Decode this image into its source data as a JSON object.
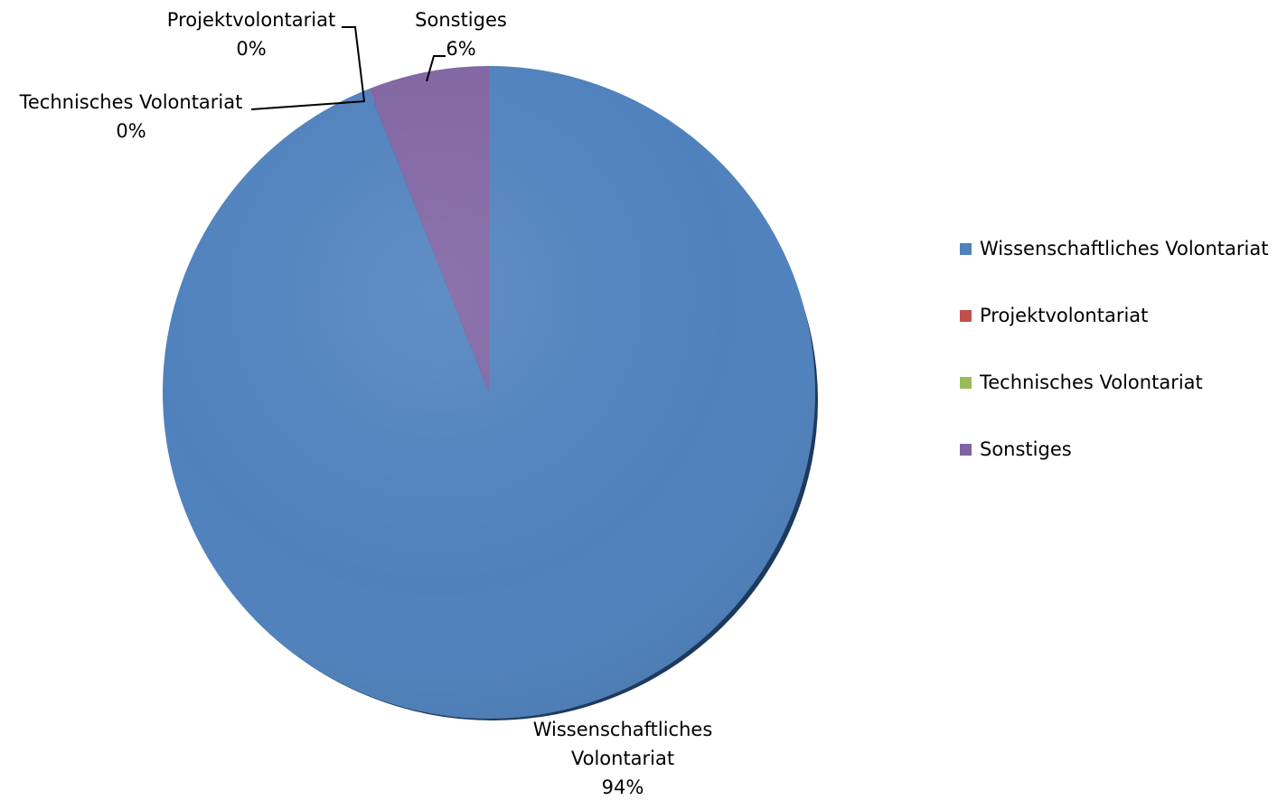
{
  "chart_data": {
    "type": "pie",
    "title": "",
    "categories": [
      "Wissenschaftliches Volontariat",
      "Projektvolontariat",
      "Technisches Volontariat",
      "Sonstiges"
    ],
    "values": [
      94,
      0,
      0,
      6
    ],
    "value_unit": "%",
    "colors": [
      "#4F81BD",
      "#C0504D",
      "#9BBB59",
      "#8064A2"
    ],
    "start_angle_deg": 0,
    "direction": "clockwise",
    "style": "3d-shaded",
    "data_labels": [
      {
        "category": "Wissenschaftliches Volontariat",
        "lines": [
          "Wissenschaftliches",
          "Volontariat",
          "94%"
        ]
      },
      {
        "category": "Projektvolontariat",
        "lines": [
          "Projektvolontariat",
          "0%"
        ]
      },
      {
        "category": "Technisches Volontariat",
        "lines": [
          "Technisches Volontariat",
          "0%"
        ]
      },
      {
        "category": "Sonstiges",
        "lines": [
          "Sonstiges",
          "6%"
        ]
      }
    ],
    "legend": {
      "position": "right",
      "entries": [
        "Wissenschaftliches Volontariat",
        "Projektvolontariat",
        "Technisches Volontariat",
        "Sonstiges"
      ]
    }
  }
}
